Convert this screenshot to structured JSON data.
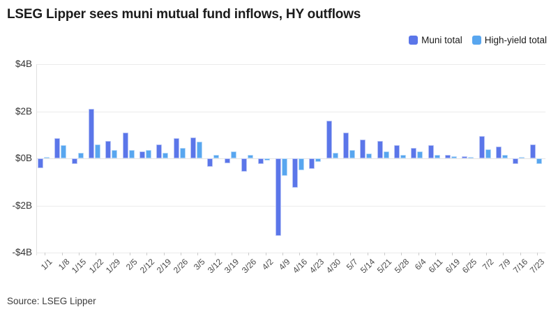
{
  "title": "LSEG Lipper sees muni mutual fund inflows, HY outflows",
  "source": "Source: LSEG Lipper",
  "legend": [
    {
      "label": "Muni total",
      "color": "#5b76e9"
    },
    {
      "label": "High-yield total",
      "color": "#58a6ef"
    }
  ],
  "chart_data": {
    "type": "bar",
    "title": "LSEG Lipper sees muni mutual fund inflows, HY outflows",
    "xlabel": "",
    "ylabel": "",
    "grid": true,
    "legend_position": "top-right",
    "ylim": [
      -4,
      4
    ],
    "yticks": [
      {
        "value": 4,
        "label": "$4B"
      },
      {
        "value": 2,
        "label": "$2B"
      },
      {
        "value": 0,
        "label": "$0B"
      },
      {
        "value": -2,
        "label": "-$2B"
      },
      {
        "value": -4,
        "label": "-$4B"
      }
    ],
    "unit": "billions USD",
    "categories": [
      "1/1",
      "1/8",
      "1/15",
      "1/22",
      "1/29",
      "2/5",
      "2/12",
      "2/19",
      "2/26",
      "3/5",
      "3/12",
      "3/19",
      "3/26",
      "4/2",
      "4/9",
      "4/16",
      "4/23",
      "4/30",
      "5/7",
      "5/14",
      "5/21",
      "5/28",
      "6/4",
      "6/11",
      "6/19",
      "6/25",
      "7/2",
      "7/9",
      "7/16",
      "7/23"
    ],
    "series": [
      {
        "name": "Muni total",
        "color": "#5b76e9",
        "values": [
          -0.4,
          0.85,
          -0.25,
          2.1,
          0.75,
          1.1,
          0.3,
          0.6,
          0.85,
          0.9,
          -0.35,
          -0.2,
          -0.55,
          -0.25,
          -3.3,
          -1.25,
          -0.45,
          1.6,
          1.1,
          0.8,
          0.75,
          0.55,
          0.45,
          0.55,
          0.15,
          0.1,
          0.95,
          0.5,
          -0.25,
          0.6
        ]
      },
      {
        "name": "High-yield total",
        "color": "#58a6ef",
        "values": [
          0.05,
          0.55,
          0.25,
          0.6,
          0.35,
          0.35,
          0.35,
          0.25,
          0.45,
          0.7,
          0.15,
          0.3,
          0.15,
          -0.1,
          -0.75,
          -0.5,
          -0.15,
          0.25,
          0.35,
          0.2,
          0.3,
          0.15,
          0.3,
          0.15,
          0.1,
          0.05,
          0.4,
          0.15,
          0.05,
          -0.25
        ]
      }
    ]
  }
}
